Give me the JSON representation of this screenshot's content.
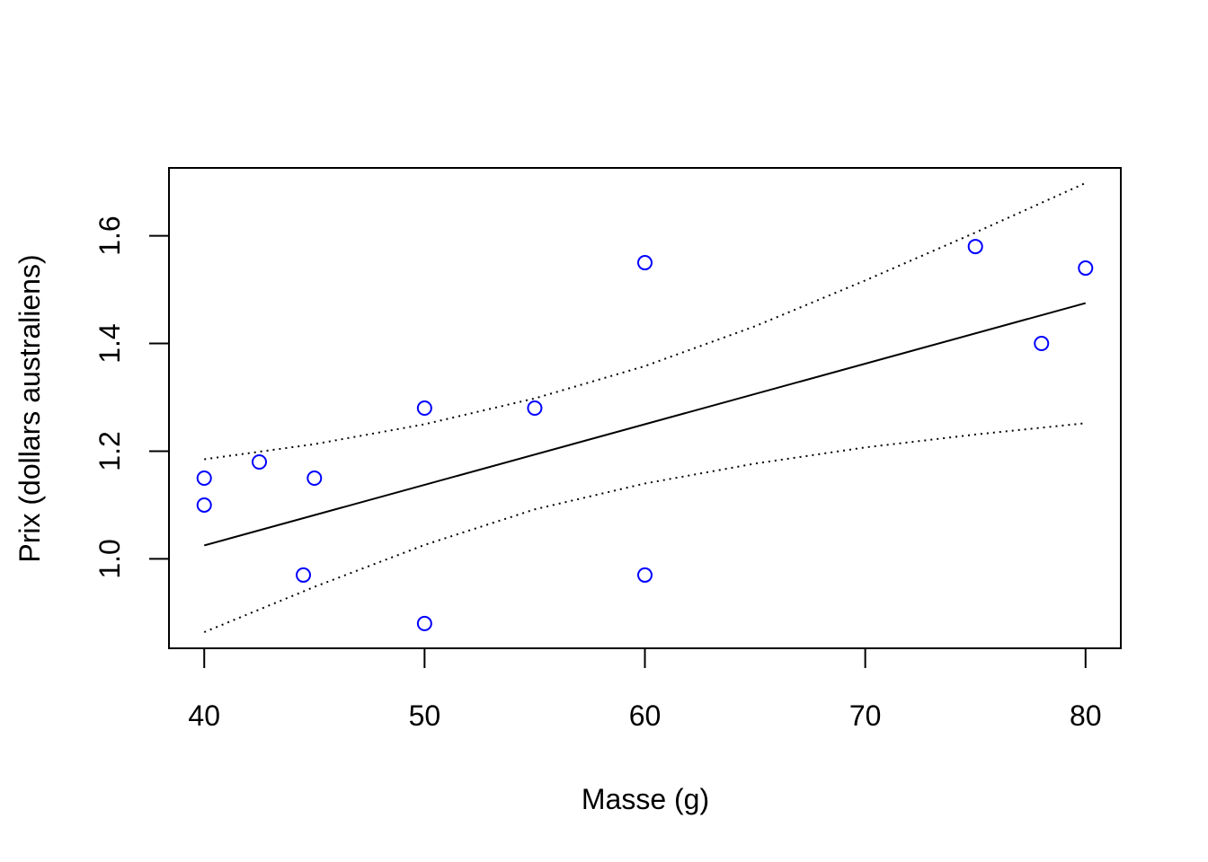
{
  "chart_data": {
    "type": "scatter",
    "title": "",
    "xlabel": "Masse (g)",
    "ylabel": "Prix (dollars australiens)",
    "xlim": [
      38.4,
      81.6
    ],
    "ylim": [
      0.834,
      1.726
    ],
    "x_ticks": [
      40,
      50,
      60,
      70,
      80
    ],
    "x_tick_labels": [
      "40",
      "50",
      "60",
      "70",
      "80"
    ],
    "y_ticks": [
      1.0,
      1.2,
      1.4,
      1.6
    ],
    "y_tick_labels": [
      "1.0",
      "1.2",
      "1.4",
      "1.6"
    ],
    "grid": false,
    "points": {
      "color": "#0000ff",
      "x": [
        40,
        40,
        42.5,
        45,
        44.5,
        50,
        50,
        55,
        60,
        60,
        75,
        78,
        80
      ],
      "y": [
        1.15,
        1.1,
        1.18,
        1.15,
        0.97,
        1.28,
        0.88,
        1.28,
        1.55,
        0.97,
        1.58,
        1.4,
        1.54
      ]
    },
    "fit_line": {
      "color": "#000000",
      "x": [
        40,
        80
      ],
      "y": [
        1.025,
        1.475
      ]
    },
    "confidence_band": {
      "color": "#000000",
      "x": [
        40,
        45,
        50,
        55,
        60,
        65,
        70,
        75,
        80
      ],
      "upper": [
        1.185,
        1.213,
        1.25,
        1.298,
        1.358,
        1.432,
        1.517,
        1.606,
        1.698
      ],
      "lower": [
        0.864,
        0.948,
        1.026,
        1.092,
        1.14,
        1.177,
        1.207,
        1.231,
        1.252
      ]
    }
  }
}
